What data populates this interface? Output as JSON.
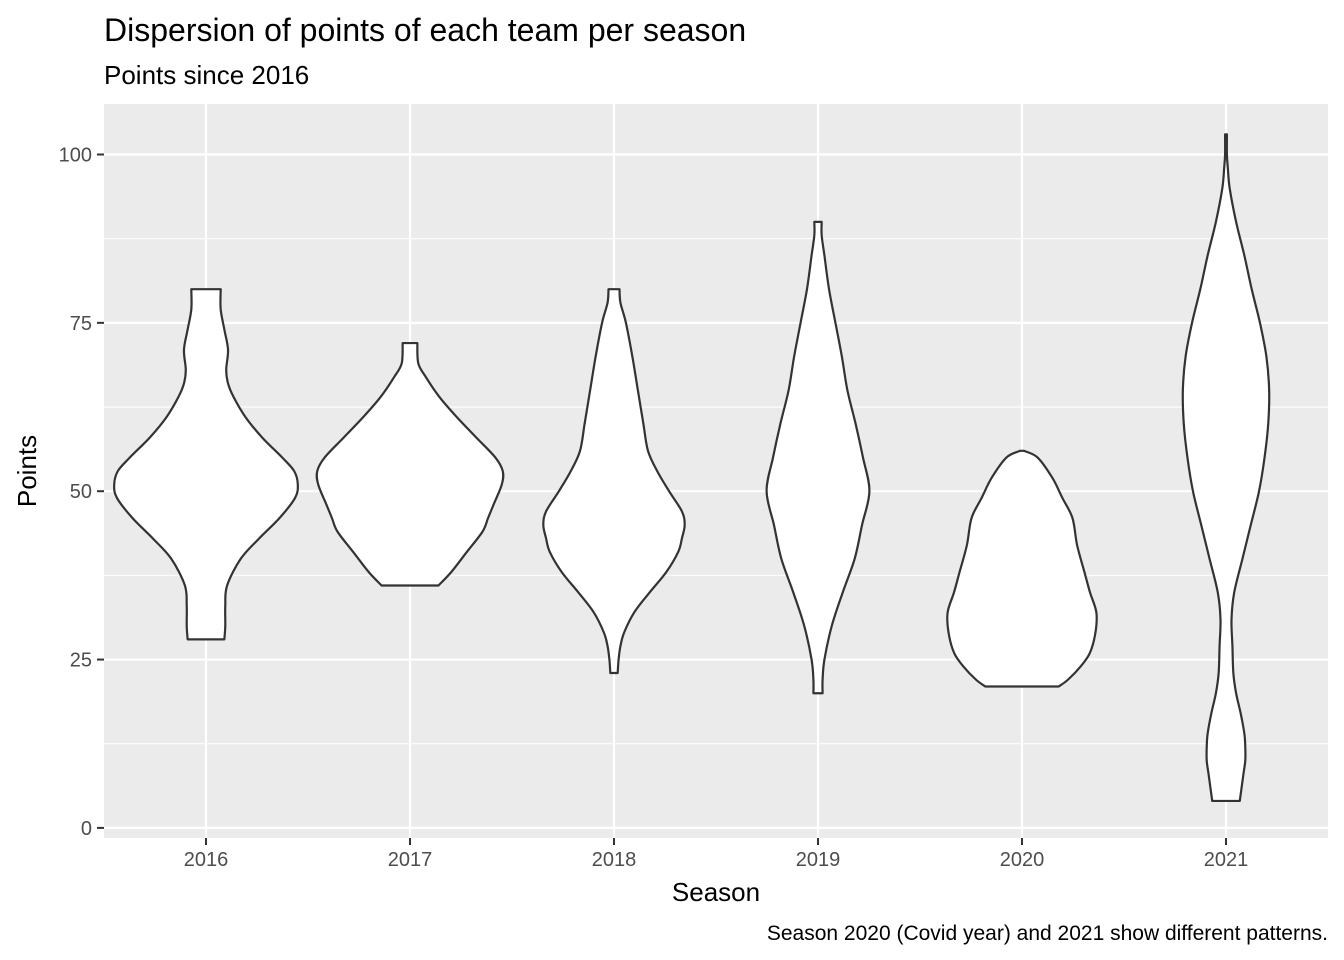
{
  "chart_data": {
    "type": "violin",
    "title": "Dispersion of points of each team per season",
    "subtitle": "Points since 2016",
    "xlabel": "Season",
    "ylabel": "Points",
    "caption": "Season 2020 (Covid year) and 2021 show different patterns.",
    "categories": [
      "2016",
      "2017",
      "2018",
      "2019",
      "2020",
      "2021"
    ],
    "y_ticks": [
      0,
      25,
      50,
      75,
      100
    ],
    "ylim": [
      -1.5,
      107.5
    ],
    "grid": true,
    "panel_background": "#ebebeb",
    "violins": [
      {
        "category": "2016",
        "min": 28,
        "max": 80,
        "profile": [
          [
            28,
            0.2
          ],
          [
            30,
            0.21
          ],
          [
            33,
            0.21
          ],
          [
            36,
            0.23
          ],
          [
            40,
            0.38
          ],
          [
            43,
            0.58
          ],
          [
            46,
            0.8
          ],
          [
            49,
            0.97
          ],
          [
            51,
            1.0
          ],
          [
            53,
            0.96
          ],
          [
            55,
            0.83
          ],
          [
            58,
            0.61
          ],
          [
            61,
            0.43
          ],
          [
            64,
            0.3
          ],
          [
            66,
            0.24
          ],
          [
            68,
            0.22
          ],
          [
            71,
            0.24
          ],
          [
            74,
            0.2
          ],
          [
            77,
            0.16
          ],
          [
            80,
            0.16
          ]
        ]
      },
      {
        "category": "2017",
        "min": 36,
        "max": 72,
        "profile": [
          [
            36,
            0.31
          ],
          [
            38,
            0.45
          ],
          [
            41,
            0.62
          ],
          [
            44,
            0.79
          ],
          [
            46,
            0.85
          ],
          [
            48,
            0.91
          ],
          [
            51,
            1.0
          ],
          [
            53,
            1.01
          ],
          [
            55,
            0.93
          ],
          [
            58,
            0.72
          ],
          [
            61,
            0.51
          ],
          [
            64,
            0.32
          ],
          [
            67,
            0.17
          ],
          [
            69,
            0.09
          ],
          [
            72,
            0.08
          ]
        ]
      },
      {
        "category": "2018",
        "min": 23,
        "max": 80,
        "profile": [
          [
            23,
            0.04
          ],
          [
            25,
            0.05
          ],
          [
            27,
            0.07
          ],
          [
            29,
            0.11
          ],
          [
            32,
            0.22
          ],
          [
            35,
            0.39
          ],
          [
            38,
            0.57
          ],
          [
            41,
            0.7
          ],
          [
            43,
            0.74
          ],
          [
            45,
            0.77
          ],
          [
            47,
            0.74
          ],
          [
            50,
            0.6
          ],
          [
            53,
            0.47
          ],
          [
            56,
            0.37
          ],
          [
            60,
            0.32
          ],
          [
            65,
            0.26
          ],
          [
            70,
            0.2
          ],
          [
            75,
            0.13
          ],
          [
            78,
            0.07
          ],
          [
            80,
            0.06
          ]
        ]
      },
      {
        "category": "2019",
        "min": 20,
        "max": 90,
        "profile": [
          [
            20,
            0.05
          ],
          [
            22,
            0.05
          ],
          [
            25,
            0.07
          ],
          [
            30,
            0.15
          ],
          [
            35,
            0.27
          ],
          [
            40,
            0.4
          ],
          [
            45,
            0.48
          ],
          [
            50,
            0.56
          ],
          [
            55,
            0.49
          ],
          [
            60,
            0.41
          ],
          [
            65,
            0.32
          ],
          [
            70,
            0.26
          ],
          [
            75,
            0.19
          ],
          [
            80,
            0.12
          ],
          [
            85,
            0.07
          ],
          [
            88,
            0.04
          ],
          [
            90,
            0.04
          ]
        ]
      },
      {
        "category": "2020",
        "min": 21,
        "max": 56,
        "profile": [
          [
            21,
            0.4
          ],
          [
            22,
            0.5
          ],
          [
            24,
            0.64
          ],
          [
            26,
            0.74
          ],
          [
            29,
            0.8
          ],
          [
            32,
            0.81
          ],
          [
            35,
            0.74
          ],
          [
            38,
            0.68
          ],
          [
            42,
            0.6
          ],
          [
            46,
            0.55
          ],
          [
            49,
            0.44
          ],
          [
            52,
            0.33
          ],
          [
            55,
            0.17
          ],
          [
            56,
            0.02
          ]
        ]
      },
      {
        "category": "2021",
        "min": 4,
        "max": 103,
        "profile": [
          [
            4,
            0.15
          ],
          [
            6,
            0.17
          ],
          [
            8,
            0.19
          ],
          [
            10,
            0.21
          ],
          [
            12,
            0.21
          ],
          [
            14,
            0.2
          ],
          [
            17,
            0.16
          ],
          [
            20,
            0.11
          ],
          [
            23,
            0.08
          ],
          [
            27,
            0.07
          ],
          [
            31,
            0.06
          ],
          [
            35,
            0.09
          ],
          [
            40,
            0.18
          ],
          [
            45,
            0.27
          ],
          [
            50,
            0.36
          ],
          [
            55,
            0.42
          ],
          [
            60,
            0.46
          ],
          [
            65,
            0.47
          ],
          [
            70,
            0.44
          ],
          [
            75,
            0.37
          ],
          [
            80,
            0.28
          ],
          [
            85,
            0.2
          ],
          [
            90,
            0.11
          ],
          [
            95,
            0.04
          ],
          [
            98,
            0.02
          ],
          [
            100,
            0.01
          ],
          [
            103,
            0.01
          ]
        ]
      }
    ]
  }
}
